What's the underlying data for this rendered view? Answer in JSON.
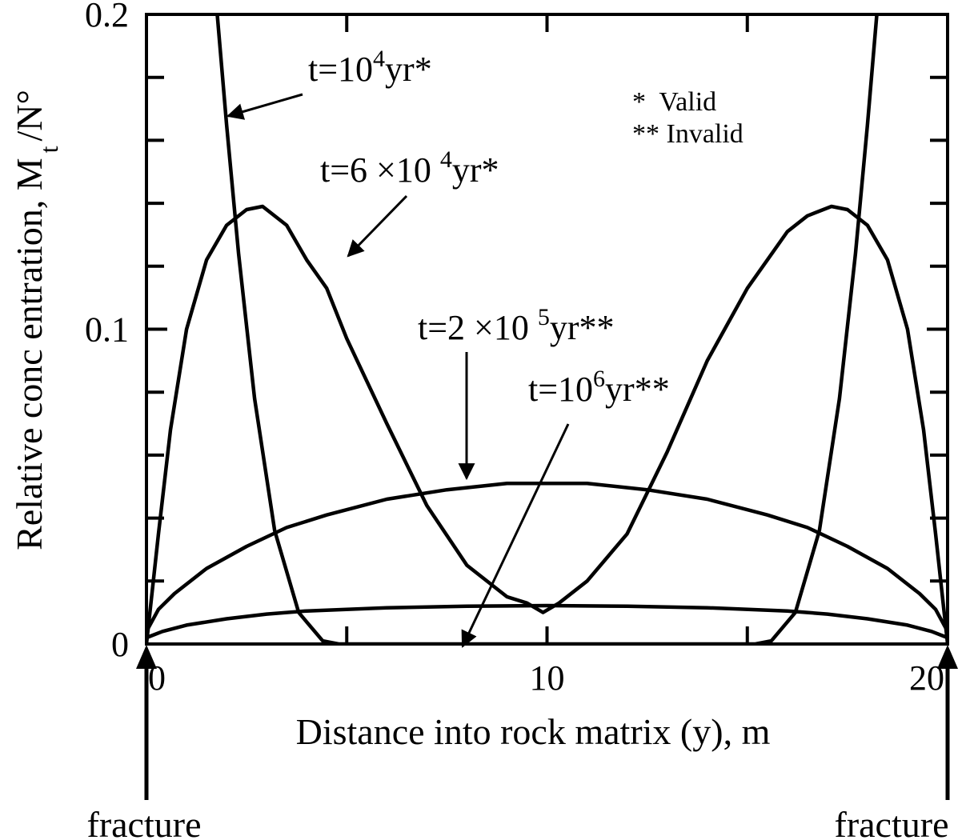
{
  "chart_data": {
    "type": "line",
    "xlabel": "Distance into rock matrix (y), m",
    "ylabel": "Relative conc entration, M",
    "ylabel_sub": "t",
    "ylabel_tail": "/N°",
    "xlim": [
      0,
      20
    ],
    "ylim": [
      0,
      0.2
    ],
    "x_ticks": [
      {
        "value": 0,
        "label": "0"
      },
      {
        "value": 10,
        "label": "10"
      },
      {
        "value": 20,
        "label": "20"
      }
    ],
    "y_ticks": [
      {
        "value": 0,
        "label": "0"
      },
      {
        "value": 0.1,
        "label": "0.1"
      },
      {
        "value": 0.2,
        "label": "0.2"
      }
    ],
    "x_minor_ticks": [
      5,
      15
    ],
    "y_minor_ticks": [
      0.02,
      0.04,
      0.06,
      0.08,
      0.12,
      0.14,
      0.16,
      0.18
    ],
    "grid": false,
    "legend_note": {
      "position": "top-right",
      "lines": [
        "*  Valid",
        "** Invalid"
      ]
    },
    "series": [
      {
        "label_parts": [
          "t=10",
          "4",
          "yr*"
        ],
        "x": [
          0.15,
          0.3,
          0.45,
          0.6,
          0.75,
          0.9,
          1.1,
          1.3,
          1.5,
          1.7,
          2.0,
          2.3,
          2.7,
          3.2,
          3.8,
          4.4,
          4.8,
          15.2,
          15.6,
          16.2,
          16.8,
          17.3,
          17.7,
          18.0,
          18.3,
          18.5,
          18.7,
          18.9,
          19.1,
          19.25,
          19.4,
          19.55,
          19.7,
          19.85
        ],
        "y": [
          0.21,
          0.21,
          0.21,
          0.21,
          0.21,
          0.21,
          0.21,
          0.21,
          0.21,
          0.21,
          0.165,
          0.124,
          0.078,
          0.036,
          0.01,
          0.001,
          0,
          0,
          0.001,
          0.01,
          0.036,
          0.078,
          0.124,
          0.165,
          0.21,
          0.21,
          0.21,
          0.21,
          0.21,
          0.21,
          0.21,
          0.21,
          0.21,
          0.21
        ]
      },
      {
        "label_parts": [
          "t=6 ×10 ",
          "4",
          "yr*"
        ],
        "x": [
          0,
          0.3,
          0.6,
          1.0,
          1.5,
          2.0,
          2.5,
          2.9,
          3.5,
          4.0,
          4.5,
          5.0,
          6.0,
          7.0,
          8.0,
          9.0,
          9.5,
          9.9,
          10.3,
          11.0,
          12.0,
          13.0,
          14.0,
          15.0,
          15.5,
          16.0,
          16.5,
          17.1,
          17.5,
          18.0,
          18.5,
          19.0,
          19.4,
          19.7,
          20.0
        ],
        "y": [
          0,
          0.035,
          0.068,
          0.1,
          0.122,
          0.133,
          0.138,
          0.139,
          0.133,
          0.122,
          0.113,
          0.097,
          0.07,
          0.044,
          0.025,
          0.015,
          0.013,
          0.01,
          0.013,
          0.02,
          0.035,
          0.061,
          0.09,
          0.113,
          0.122,
          0.131,
          0.136,
          0.139,
          0.138,
          0.133,
          0.122,
          0.1,
          0.068,
          0.035,
          0
        ]
      },
      {
        "label_parts": [
          "t=2 ×10 ",
          "5",
          "yr**"
        ],
        "x": [
          0,
          0.3,
          0.7,
          1.5,
          2.5,
          3.5,
          4.5,
          6,
          7.5,
          9,
          10,
          11,
          12.5,
          14,
          15.5,
          16.5,
          17.5,
          18.5,
          19.3,
          19.7,
          20
        ],
        "y": [
          0.004,
          0.011,
          0.016,
          0.024,
          0.031,
          0.037,
          0.041,
          0.046,
          0.049,
          0.051,
          0.051,
          0.051,
          0.049,
          0.046,
          0.041,
          0.037,
          0.031,
          0.024,
          0.016,
          0.011,
          0.004
        ]
      },
      {
        "label_parts": [
          "t=10",
          "6",
          "yr**"
        ],
        "x": [
          0,
          0.4,
          1,
          2,
          3,
          4,
          6,
          8,
          10,
          12,
          14,
          16,
          17,
          18,
          19,
          19.6,
          20
        ],
        "y": [
          0.002,
          0.004,
          0.006,
          0.008,
          0.0095,
          0.0105,
          0.0115,
          0.012,
          0.0122,
          0.012,
          0.0115,
          0.0105,
          0.0095,
          0.008,
          0.006,
          0.004,
          0.002
        ]
      }
    ],
    "annotations": {
      "bottom_left": "fracture",
      "bottom_right": "fracture"
    }
  }
}
